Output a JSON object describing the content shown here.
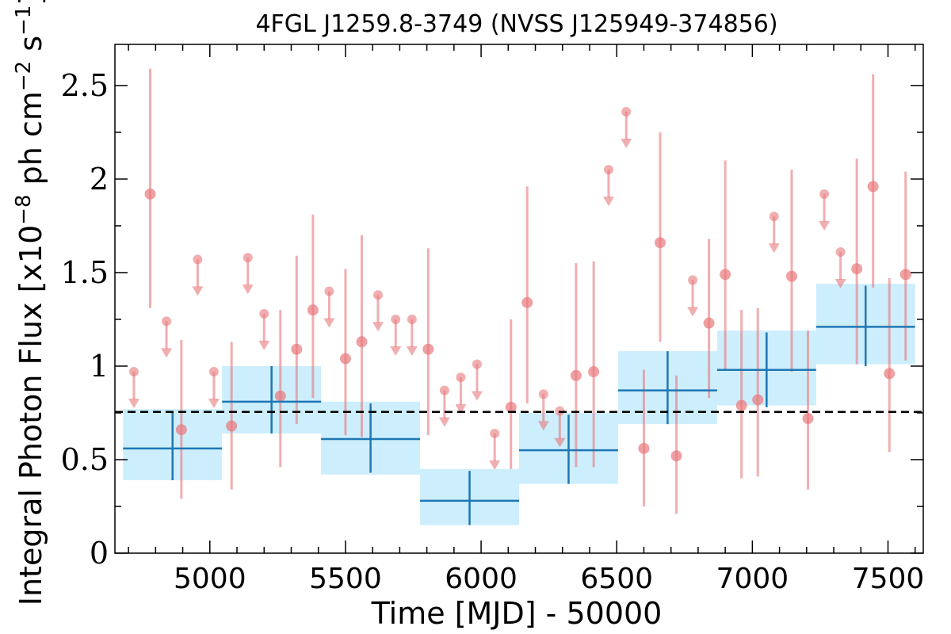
{
  "chart_data": {
    "type": "scatter",
    "title": "4FGL J1259.8-3749 (NVSS J125949-374856)",
    "xlabel": "Time [MJD] - 50000",
    "ylabel_main": "Integral Photon Flux [x10",
    "ylabel_exp1": "−8",
    "ylabel_mid": " ph cm",
    "ylabel_exp2": "−2",
    "ylabel_s": " s",
    "ylabel_exp3": "−1",
    "ylabel_end": "]",
    "xlim": [
      4650,
      7630
    ],
    "ylim": [
      0,
      2.72
    ],
    "xticks": [
      5000,
      5500,
      6000,
      6500,
      7000,
      7500
    ],
    "xtick_labels": [
      "5000",
      "5500",
      "6000",
      "6500",
      "7000",
      "7500"
    ],
    "yticks": [
      0,
      0.5,
      1,
      1.5,
      2,
      2.5
    ],
    "ytick_labels": [
      "0",
      "0.5",
      "1",
      "1.5",
      "2",
      "2.5"
    ],
    "mean_flux": 0.755,
    "colors": {
      "points": "#e8787c",
      "bins": "#1f77b4",
      "band": "#cdeefc",
      "mean_line": "#000000"
    },
    "monthly_detections": [
      {
        "x": 4780,
        "y": 1.92,
        "ylo": 1.31,
        "yhi": 2.59
      },
      {
        "x": 4895,
        "y": 0.66,
        "ylo": 0.29,
        "yhi": 1.14
      },
      {
        "x": 5080,
        "y": 0.68,
        "ylo": 0.34,
        "yhi": 1.13
      },
      {
        "x": 5260,
        "y": 0.84,
        "ylo": 0.46,
        "yhi": 1.3
      },
      {
        "x": 5320,
        "y": 1.09,
        "ylo": 0.69,
        "yhi": 1.59
      },
      {
        "x": 5380,
        "y": 1.3,
        "ylo": 0.83,
        "yhi": 1.81
      },
      {
        "x": 5500,
        "y": 1.04,
        "ylo": 0.63,
        "yhi": 1.52
      },
      {
        "x": 5560,
        "y": 1.13,
        "ylo": 0.62,
        "yhi": 1.7
      },
      {
        "x": 5805,
        "y": 1.09,
        "ylo": 0.63,
        "yhi": 1.63
      },
      {
        "x": 6110,
        "y": 0.78,
        "ylo": 0.45,
        "yhi": 1.25
      },
      {
        "x": 6170,
        "y": 1.34,
        "ylo": 0.8,
        "yhi": 1.96
      },
      {
        "x": 6350,
        "y": 0.95,
        "ylo": 0.46,
        "yhi": 1.55
      },
      {
        "x": 6415,
        "y": 0.97,
        "ylo": 0.46,
        "yhi": 1.56
      },
      {
        "x": 6600,
        "y": 0.56,
        "ylo": 0.25,
        "yhi": 0.98
      },
      {
        "x": 6660,
        "y": 1.66,
        "ylo": 1.13,
        "yhi": 2.25
      },
      {
        "x": 6720,
        "y": 0.52,
        "ylo": 0.21,
        "yhi": 0.95
      },
      {
        "x": 6840,
        "y": 1.23,
        "ylo": 0.83,
        "yhi": 1.68
      },
      {
        "x": 6900,
        "y": 1.49,
        "ylo": 0.98,
        "yhi": 2.1
      },
      {
        "x": 6960,
        "y": 0.79,
        "ylo": 0.4,
        "yhi": 1.3
      },
      {
        "x": 7020,
        "y": 0.82,
        "ylo": 0.41,
        "yhi": 1.31
      },
      {
        "x": 7145,
        "y": 1.48,
        "ylo": 0.97,
        "yhi": 2.05
      },
      {
        "x": 7205,
        "y": 0.72,
        "ylo": 0.34,
        "yhi": 1.19
      },
      {
        "x": 7385,
        "y": 1.52,
        "ylo": 1.01,
        "yhi": 2.11
      },
      {
        "x": 7445,
        "y": 1.96,
        "ylo": 1.42,
        "yhi": 2.56
      },
      {
        "x": 7505,
        "y": 0.96,
        "ylo": 0.54,
        "yhi": 1.47
      },
      {
        "x": 7565,
        "y": 1.49,
        "ylo": 1.03,
        "yhi": 2.04
      }
    ],
    "monthly_upper_limits": [
      {
        "x": 4720,
        "y": 0.97
      },
      {
        "x": 4840,
        "y": 1.24
      },
      {
        "x": 4955,
        "y": 1.57
      },
      {
        "x": 5015,
        "y": 0.97
      },
      {
        "x": 5140,
        "y": 1.58
      },
      {
        "x": 5200,
        "y": 1.28
      },
      {
        "x": 5440,
        "y": 1.4
      },
      {
        "x": 5620,
        "y": 1.38
      },
      {
        "x": 5685,
        "y": 1.25
      },
      {
        "x": 5745,
        "y": 1.25
      },
      {
        "x": 5865,
        "y": 0.87
      },
      {
        "x": 5925,
        "y": 0.94
      },
      {
        "x": 5985,
        "y": 1.01
      },
      {
        "x": 6050,
        "y": 0.64
      },
      {
        "x": 6230,
        "y": 0.85
      },
      {
        "x": 6290,
        "y": 0.76
      },
      {
        "x": 6470,
        "y": 2.05
      },
      {
        "x": 6535,
        "y": 2.36
      },
      {
        "x": 6780,
        "y": 1.46
      },
      {
        "x": 7080,
        "y": 1.8
      },
      {
        "x": 7265,
        "y": 1.92
      },
      {
        "x": 7325,
        "y": 1.61
      }
    ],
    "yearly_bins": [
      {
        "xmin": 4680,
        "xmax": 5045,
        "y": 0.56,
        "yerr_lo": 0.39,
        "yerr_hi": 0.76,
        "band_lo": 0.39,
        "band_hi": 0.77
      },
      {
        "xmin": 5045,
        "xmax": 5410,
        "y": 0.81,
        "yerr_lo": 0.64,
        "yerr_hi": 1.0,
        "band_lo": 0.64,
        "band_hi": 1.0
      },
      {
        "xmin": 5410,
        "xmax": 5775,
        "y": 0.61,
        "yerr_lo": 0.43,
        "yerr_hi": 0.8,
        "band_lo": 0.42,
        "band_hi": 0.81
      },
      {
        "xmin": 5775,
        "xmax": 6140,
        "y": 0.28,
        "yerr_lo": 0.15,
        "yerr_hi": 0.44,
        "band_lo": 0.15,
        "band_hi": 0.45
      },
      {
        "xmin": 6140,
        "xmax": 6505,
        "y": 0.55,
        "yerr_lo": 0.37,
        "yerr_hi": 0.74,
        "band_lo": 0.37,
        "band_hi": 0.75
      },
      {
        "xmin": 6505,
        "xmax": 6870,
        "y": 0.87,
        "yerr_lo": 0.69,
        "yerr_hi": 1.08,
        "band_lo": 0.69,
        "band_hi": 1.08
      },
      {
        "xmin": 6870,
        "xmax": 7235,
        "y": 0.98,
        "yerr_lo": 0.78,
        "yerr_hi": 1.18,
        "band_lo": 0.79,
        "band_hi": 1.19
      },
      {
        "xmin": 7235,
        "xmax": 7600,
        "y": 1.21,
        "yerr_lo": 1.0,
        "yerr_hi": 1.43,
        "band_lo": 1.01,
        "band_hi": 1.44
      }
    ]
  }
}
